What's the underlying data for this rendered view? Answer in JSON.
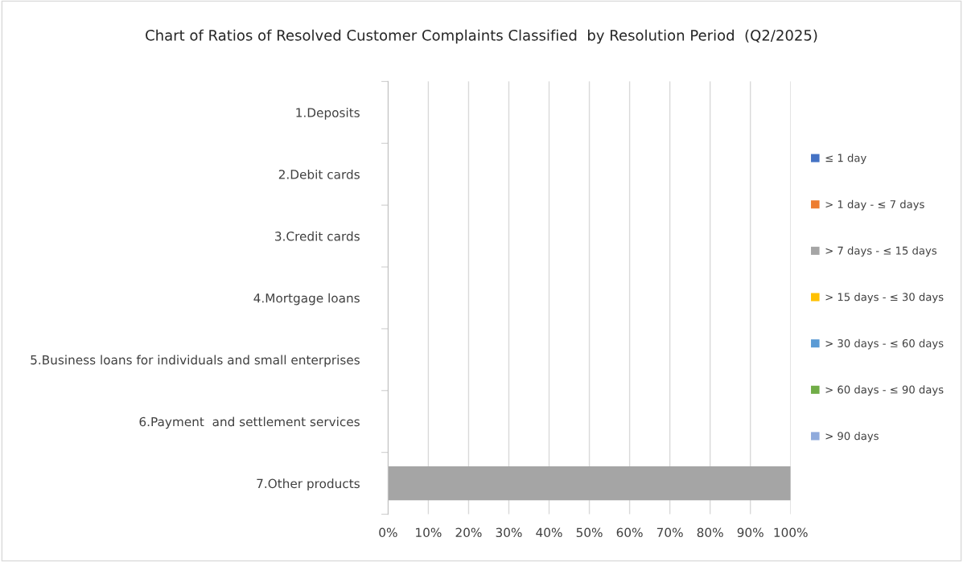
{
  "chart_data": {
    "type": "bar",
    "orientation": "horizontal",
    "title": "Chart of Ratios of Resolved Customer Complaints Classified  by Resolution Period  (Q2/2025)",
    "categories": [
      "1.Deposits",
      "2.Debit cards",
      "3.Credit cards",
      "4.Mortgage loans",
      "5.Business loans for individuals and small enterprises",
      "6.Payment  and settlement services",
      "7.Other products"
    ],
    "series": [
      {
        "name": "≤ 1 day",
        "color": "#4472c4",
        "values": [
          null,
          null,
          null,
          null,
          null,
          null,
          null
        ]
      },
      {
        "name": "> 1 day - ≤ 7 days",
        "color": "#ed7d31",
        "values": [
          null,
          null,
          null,
          null,
          null,
          null,
          null
        ]
      },
      {
        "name": "> 7 days - ≤ 15 days",
        "color": "#a5a5a5",
        "values": [
          null,
          null,
          null,
          null,
          null,
          null,
          100
        ]
      },
      {
        "name": "> 15 days - ≤ 30 days",
        "color": "#ffc000",
        "values": [
          null,
          null,
          null,
          null,
          null,
          null,
          null
        ]
      },
      {
        "name": "> 30 days - ≤ 60 days",
        "color": "#5b9bd5",
        "values": [
          null,
          null,
          null,
          null,
          null,
          null,
          null
        ]
      },
      {
        "name": "> 60 days - ≤ 90 days",
        "color": "#70ad47",
        "values": [
          null,
          null,
          null,
          null,
          null,
          null,
          null
        ]
      },
      {
        "name": "> 90 days",
        "color": "#8faadc",
        "values": [
          null,
          null,
          null,
          null,
          null,
          null,
          null
        ]
      }
    ],
    "xlim": [
      0,
      100
    ],
    "xticks": [
      {
        "value": 0,
        "label": "0%"
      },
      {
        "value": 10,
        "label": "10%"
      },
      {
        "value": 20,
        "label": "20%"
      },
      {
        "value": 30,
        "label": "30%"
      },
      {
        "value": 40,
        "label": "40%"
      },
      {
        "value": 50,
        "label": "50%"
      },
      {
        "value": 60,
        "label": "60%"
      },
      {
        "value": 70,
        "label": "70%"
      },
      {
        "value": 80,
        "label": "80%"
      },
      {
        "value": 90,
        "label": "90%"
      },
      {
        "value": 100,
        "label": "100%"
      }
    ],
    "grid": "x",
    "legend": "right"
  }
}
